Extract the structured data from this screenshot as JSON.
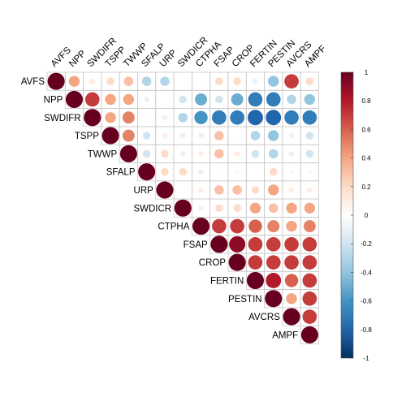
{
  "chart_data": {
    "type": "heatmap",
    "subtype": "correlation-matrix-circles",
    "title": "",
    "variables": [
      "AVFS",
      "NPP",
      "SWDIFR",
      "TSPP",
      "TWWP",
      "SFALP",
      "URP",
      "SWDICR",
      "CTPHA",
      "FSAP",
      "CROP",
      "FERTIN",
      "PESTIN",
      "AVCRS",
      "AMPF"
    ],
    "matrix_shape": "upper-triangle",
    "label_position": "top-and-left",
    "grid": true,
    "values": [
      [
        1.0,
        0.4,
        0.1,
        0.2,
        0.3,
        -0.3,
        -0.3,
        0.0,
        0.03,
        0.2,
        0.2,
        -0.1,
        -0.4,
        0.7,
        0.2
      ],
      [
        null,
        1.0,
        0.7,
        0.4,
        0.4,
        -0.1,
        0.0,
        -0.2,
        -0.5,
        -0.2,
        -0.5,
        -0.7,
        -0.7,
        -0.3,
        -0.4
      ],
      [
        null,
        null,
        1.0,
        0.4,
        0.5,
        0.03,
        -0.1,
        -0.3,
        -0.6,
        -0.7,
        -0.7,
        -0.8,
        -0.8,
        -0.7,
        -0.7
      ],
      [
        null,
        null,
        null,
        1.0,
        0.5,
        -0.2,
        0.1,
        -0.1,
        0.1,
        0.3,
        0.0,
        -0.3,
        -0.4,
        -0.1,
        -0.2
      ],
      [
        null,
        null,
        null,
        null,
        1.0,
        -0.2,
        0.2,
        -0.1,
        0.1,
        0.3,
        0.1,
        -0.2,
        -0.3,
        -0.1,
        -0.2
      ],
      [
        null,
        null,
        null,
        null,
        null,
        1.0,
        0.2,
        0.2,
        -0.1,
        -0.03,
        -0.05,
        0.0,
        0.2,
        0.05,
        0.05
      ],
      [
        null,
        null,
        null,
        null,
        null,
        null,
        1.0,
        0.0,
        0.1,
        0.3,
        0.3,
        0.2,
        0.4,
        0.1,
        0.1
      ],
      [
        null,
        null,
        null,
        null,
        null,
        null,
        null,
        1.0,
        0.1,
        0.2,
        0.2,
        0.4,
        0.3,
        0.4,
        0.4
      ],
      [
        null,
        null,
        null,
        null,
        null,
        null,
        null,
        null,
        1.0,
        0.7,
        0.7,
        0.6,
        0.5,
        0.4,
        0.5
      ],
      [
        null,
        null,
        null,
        null,
        null,
        null,
        null,
        null,
        null,
        1.0,
        0.9,
        0.7,
        0.7,
        0.7,
        0.7
      ],
      [
        null,
        null,
        null,
        null,
        null,
        null,
        null,
        null,
        null,
        null,
        1.0,
        0.7,
        0.7,
        0.7,
        0.7
      ],
      [
        null,
        null,
        null,
        null,
        null,
        null,
        null,
        null,
        null,
        null,
        null,
        1.0,
        0.8,
        0.6,
        0.7
      ],
      [
        null,
        null,
        null,
        null,
        null,
        null,
        null,
        null,
        null,
        null,
        null,
        null,
        1.0,
        0.4,
        0.7
      ],
      [
        null,
        null,
        null,
        null,
        null,
        null,
        null,
        null,
        null,
        null,
        null,
        null,
        null,
        1.0,
        0.7
      ],
      [
        null,
        null,
        null,
        null,
        null,
        null,
        null,
        null,
        null,
        null,
        null,
        null,
        null,
        null,
        1.0
      ]
    ],
    "colorbar": {
      "range": [
        -1,
        1
      ],
      "ticks": [
        "1",
        "0.8",
        "0.6",
        "0.4",
        "0.2",
        "0",
        "-0.2",
        "-0.4",
        "-0.6",
        "-0.8",
        "-1"
      ],
      "colors": [
        "#67001F",
        "#B2182B",
        "#D6604D",
        "#F4A582",
        "#FDDBC7",
        "#FFFFFF",
        "#D1E5F0",
        "#92C5DE",
        "#4393C3",
        "#2166AC",
        "#053061"
      ]
    }
  }
}
